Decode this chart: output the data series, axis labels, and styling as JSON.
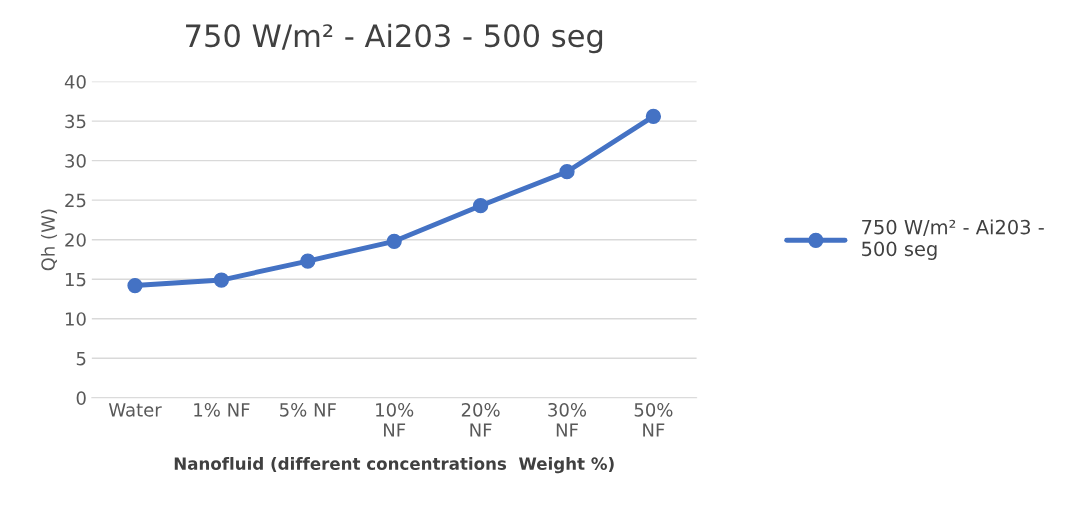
{
  "chart_data": {
    "type": "line",
    "title": "750 W/m² - Ai203 - 500 seg",
    "xlabel": "Nanofluid (different concentrations  Weight %)",
    "ylabel": "Qh (W)",
    "categories": [
      "Water",
      "1% NF",
      "5% NF",
      "10%\nNF",
      "20%\nNF",
      "30%\nNF",
      "50%\nNF"
    ],
    "series": [
      {
        "name": "750 W/m² - Ai203 -\n500 seg",
        "color": "#4472c4",
        "values": [
          14.2,
          14.9,
          17.3,
          19.8,
          24.3,
          28.6,
          35.6
        ]
      }
    ],
    "ylim": [
      0,
      40
    ],
    "yticks": [
      0,
      5,
      10,
      15,
      20,
      25,
      30,
      35,
      40
    ],
    "grid": "y",
    "legend": "right",
    "marker": "circle",
    "line_style": "solid"
  }
}
